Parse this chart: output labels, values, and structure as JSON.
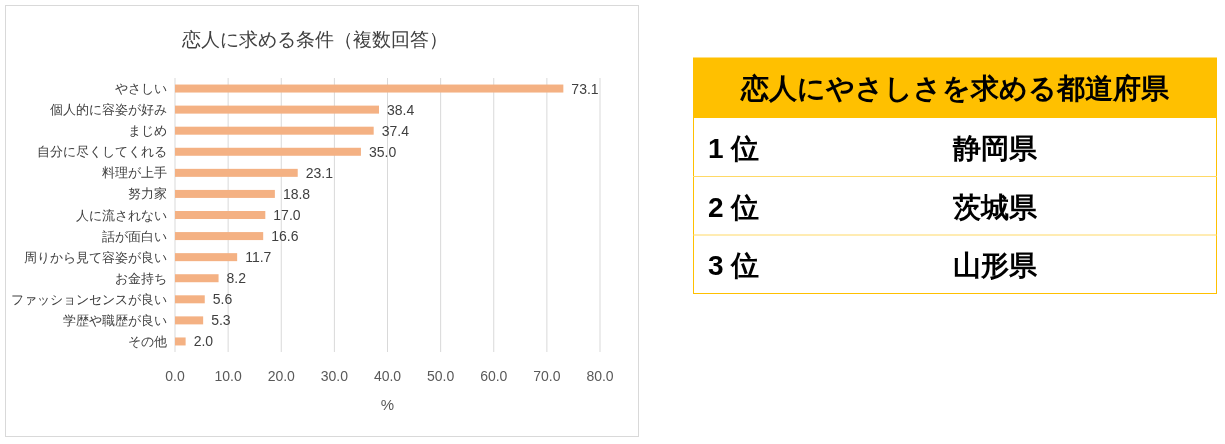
{
  "chart_data": [
    {
      "type": "bar",
      "orientation": "horizontal",
      "title": "恋人に求める条件（複数回答）",
      "xlabel": "%",
      "color": "#f4b183",
      "grid": "x",
      "categories": [
        "やさしい",
        "個人的に容姿が好み",
        "まじめ",
        "自分に尽くしてくれる",
        "料理が上手",
        "努力家",
        "人に流されない",
        "話が面白い",
        "周りから見て容姿が良い",
        "お金持ち",
        "ファッションセンスが良い",
        "学歴や職歴が良い",
        "その他"
      ],
      "values": [
        73.1,
        38.4,
        37.4,
        35.0,
        23.1,
        18.8,
        17.0,
        16.6,
        11.7,
        8.2,
        5.6,
        5.3,
        2.0
      ],
      "value_labels": [
        "73.1",
        "38.4",
        "37.4",
        "35.0",
        "23.1",
        "18.8",
        "17.0",
        "16.6",
        "11.7",
        "8.2",
        "5.6",
        "5.3",
        "2.0"
      ],
      "xlim": [
        0,
        80
      ],
      "xticks": [
        {
          "value": 0,
          "label": "0.0"
        },
        {
          "value": 10,
          "label": "10.0"
        },
        {
          "value": 20,
          "label": "20.0"
        },
        {
          "value": 30,
          "label": "30.0"
        },
        {
          "value": 40,
          "label": "40.0"
        },
        {
          "value": 50,
          "label": "50.0"
        },
        {
          "value": 60,
          "label": "60.0"
        },
        {
          "value": 70,
          "label": "70.0"
        },
        {
          "value": 80,
          "label": "80.0"
        }
      ]
    },
    {
      "type": "other",
      "title": "恋人にやさしさを求める都道府県",
      "annotations": [
        "1 位",
        "静岡県",
        "2 位",
        "茨城県",
        "3 位",
        "山形県"
      ]
    }
  ]
}
